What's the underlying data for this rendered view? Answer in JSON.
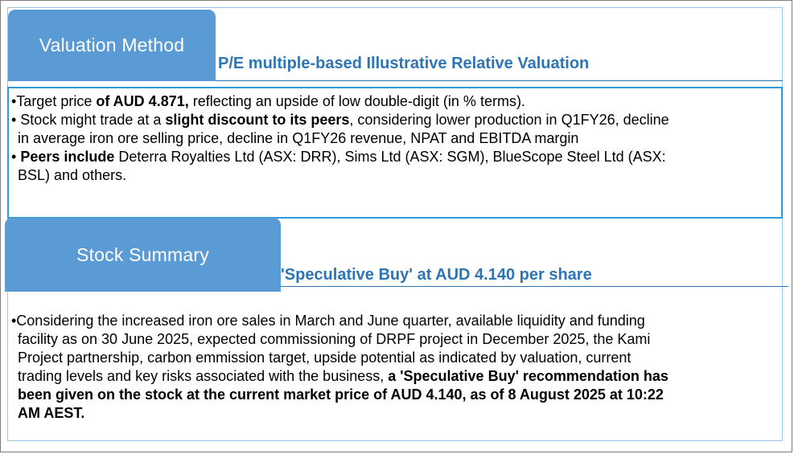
{
  "valuation": {
    "tab_label": "Valuation Method",
    "subtitle": "P/E multiple-based Illustrative Relative Valuation",
    "bullet1": {
      "pre": "•Target price ",
      "bold": "of AUD 4.871,",
      "post": " reflecting an upside of low double-digit (in % terms)."
    },
    "bullet2": {
      "pre": "• Stock might trade at a ",
      "bold": "slight discount to its peers",
      "post": ", considering lower production in Q1FY26, decline",
      "line2": "in average iron ore selling price, decline in Q1FY26 revenue, NPAT and EBITDA margin"
    },
    "bullet3": {
      "pre": "• ",
      "bold": "Peers include",
      "post": " Deterra Royalties Ltd (ASX: DRR), Sims Ltd (ASX: SGM), BlueScope Steel Ltd (ASX:",
      "line2": "BSL) and others."
    }
  },
  "stock_summary": {
    "tab_label": "Stock Summary",
    "subtitle": "'Speculative Buy' at AUD 4.140 per share",
    "line1": "•Considering the increased iron ore sales in March and June quarter, available liquidity and funding",
    "line2": "facility as on 30 June 2025, expected commissioning of DRPF project in December 2025, the Kami",
    "line3": "Project partnership, carbon emmission target, upside potential as indicated by valuation, current",
    "line4_pre": "trading levels and key risks associated with the business, ",
    "line4_bold": "a 'Speculative Buy' recommendation has",
    "line5": "been given on the stock at the current market price of AUD 4.140, as of 8 August 2025 at 10:22",
    "line6": "AM AEST."
  },
  "colors": {
    "tab_fill": "#5b9bd5",
    "heading_text": "#2e75b6",
    "box_border": "#2e9bd6"
  }
}
